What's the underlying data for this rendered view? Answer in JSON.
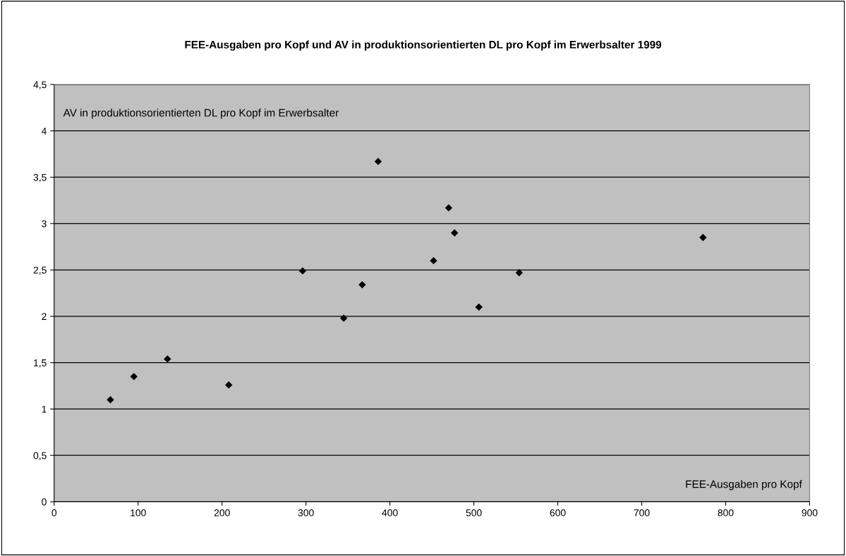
{
  "chart_data": {
    "type": "scatter",
    "title": "FEE-Ausgaben pro Kopf und AV in produktionsorientierten DL pro Kopf im Erwerbsalter 1999",
    "xlabel": "FEE-Ausgaben pro Kopf",
    "ylabel": "AV in produktionsorientierten DL pro Kopf im Erwerbsalter",
    "x": [
      67,
      95,
      135,
      208,
      296,
      345,
      367,
      386,
      452,
      470,
      477,
      506,
      554,
      773
    ],
    "series": [
      {
        "color": "#000000",
        "values": [
          1.1,
          1.35,
          1.54,
          1.26,
          2.49,
          1.98,
          2.34,
          3.67,
          2.6,
          3.17,
          2.9,
          2.1,
          2.47,
          2.85
        ]
      }
    ],
    "marker": "diamond",
    "grid": "y",
    "xlim": [
      0,
      900
    ],
    "xticks": [
      0,
      100,
      200,
      300,
      400,
      500,
      600,
      700,
      800,
      900
    ],
    "ylim": [
      0,
      4.5
    ],
    "yticks": [
      {
        "value": 0,
        "label": "0"
      },
      {
        "value": 0.5,
        "label": "0,5"
      },
      {
        "value": 1,
        "label": "1"
      },
      {
        "value": 1.5,
        "label": "1,5"
      },
      {
        "value": 2,
        "label": "2"
      },
      {
        "value": 2.5,
        "label": "2,5"
      },
      {
        "value": 3,
        "label": "3"
      },
      {
        "value": 3.5,
        "label": "3,5"
      },
      {
        "value": 4,
        "label": "4"
      },
      {
        "value": 4.5,
        "label": "4,5"
      }
    ]
  }
}
